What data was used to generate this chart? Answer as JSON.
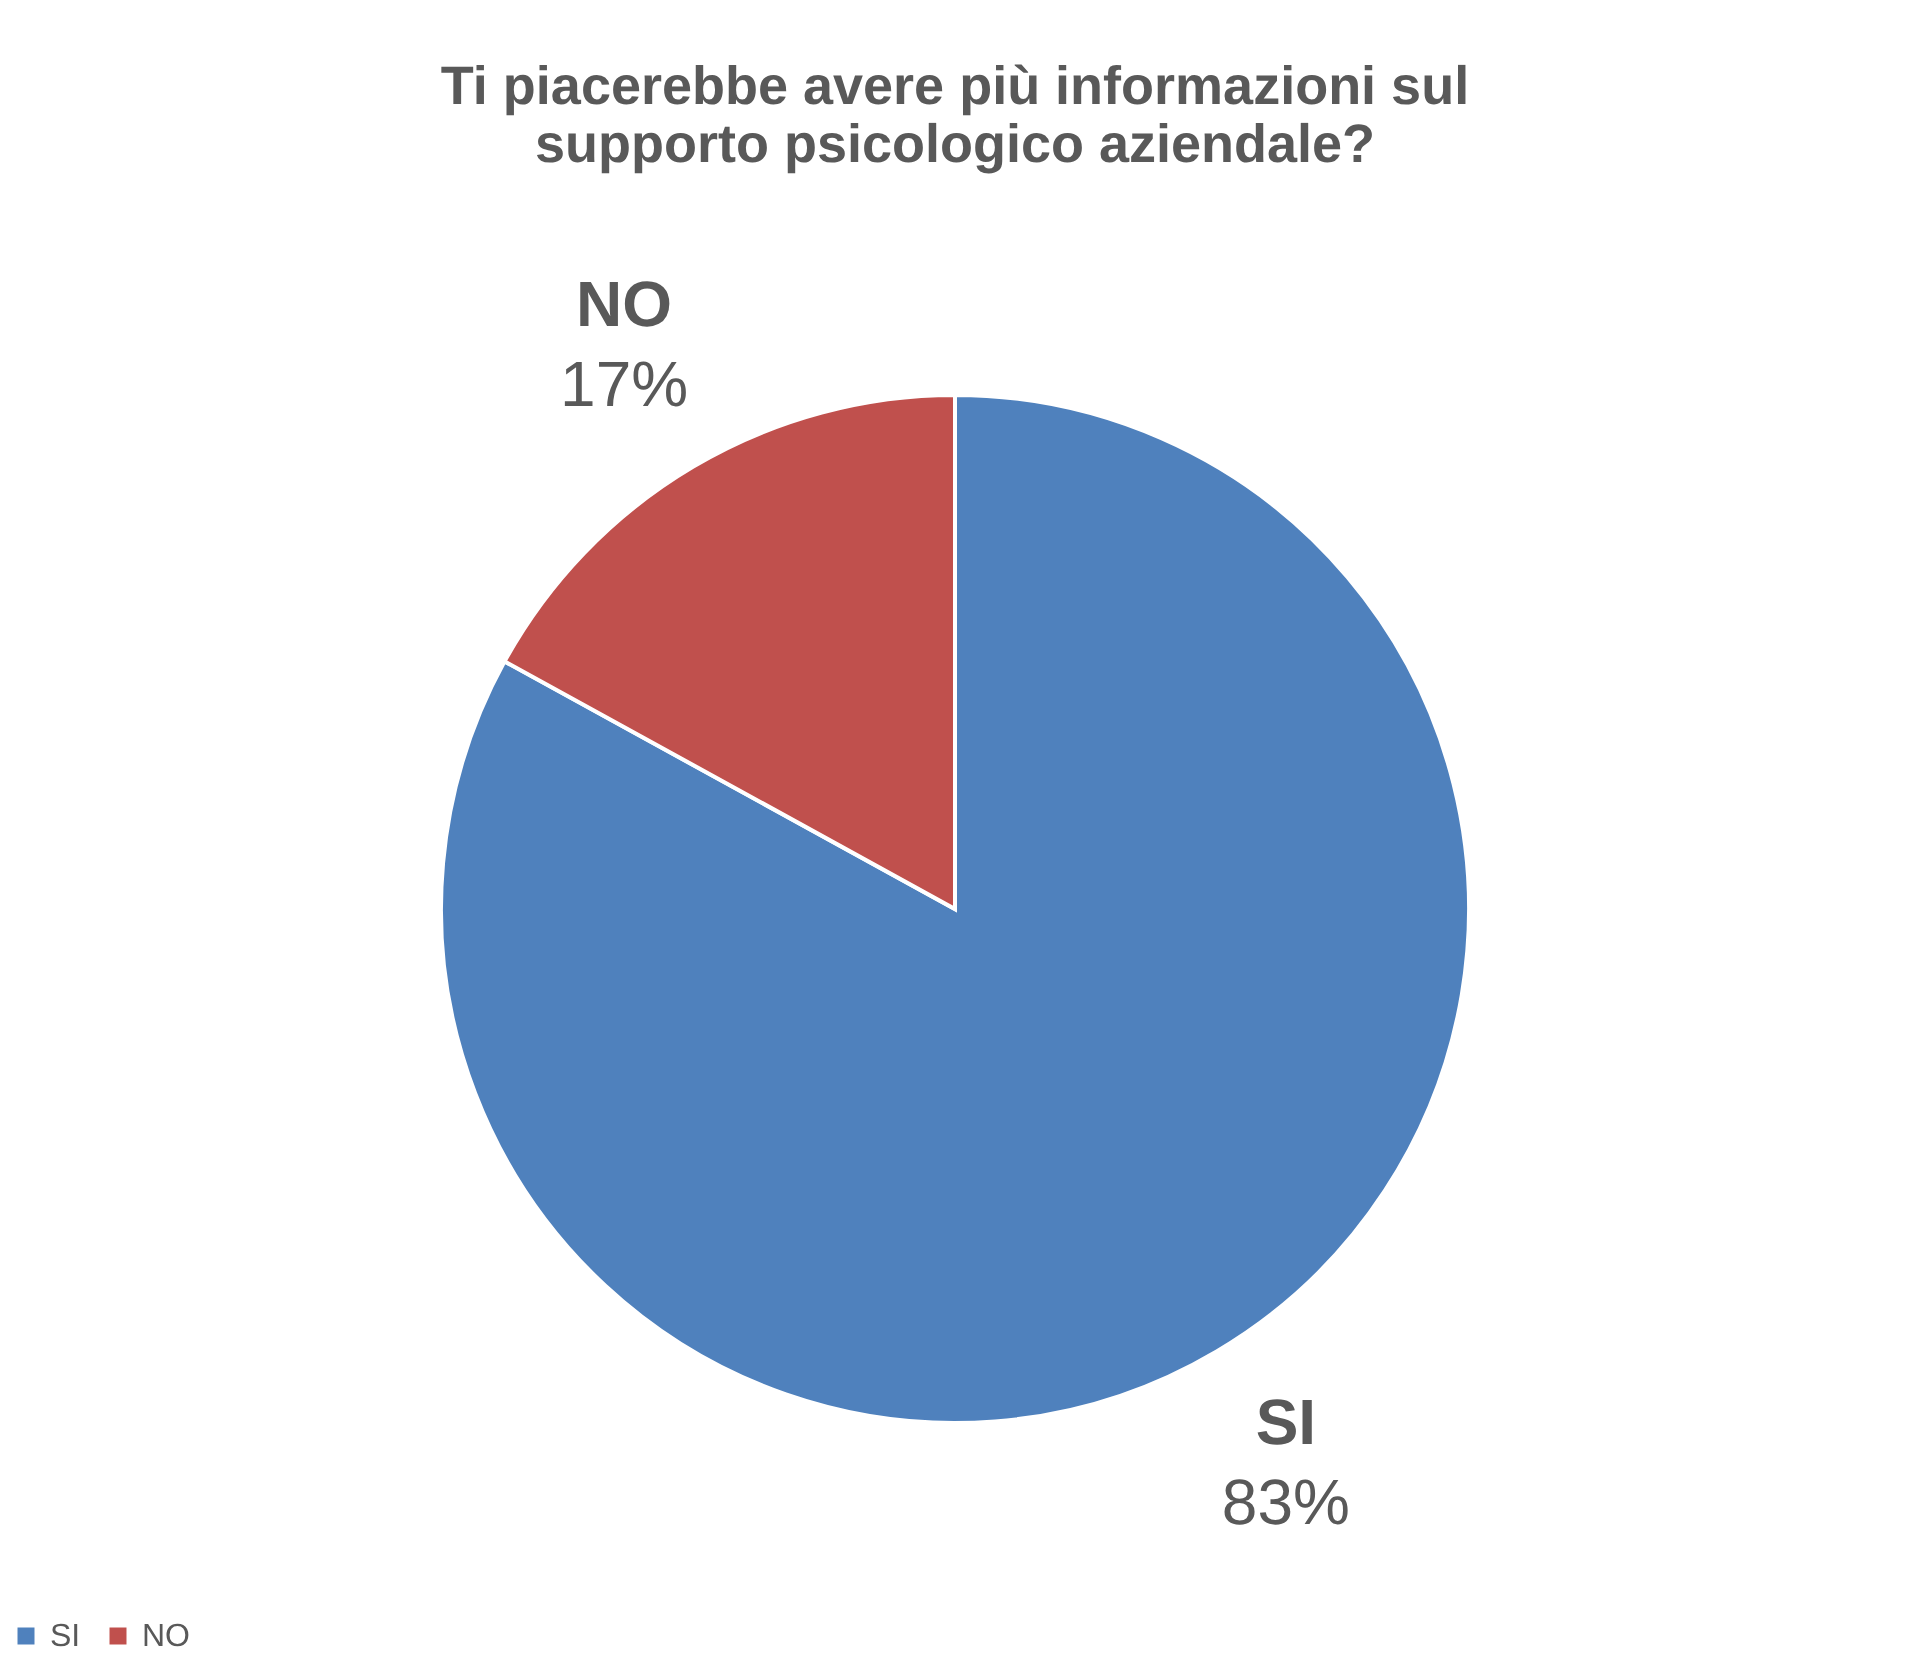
{
  "chart_data": {
    "type": "pie",
    "title": [
      "Ti piacerebbe avere più informazioni sul",
      "supporto psicologico aziendale?"
    ],
    "categories": [
      "SI",
      "NO"
    ],
    "values": [
      83,
      17
    ],
    "colors": [
      "#4f81bd",
      "#c0504d"
    ],
    "value_labels": [
      "83%",
      "17%"
    ],
    "legend": "bottom"
  }
}
